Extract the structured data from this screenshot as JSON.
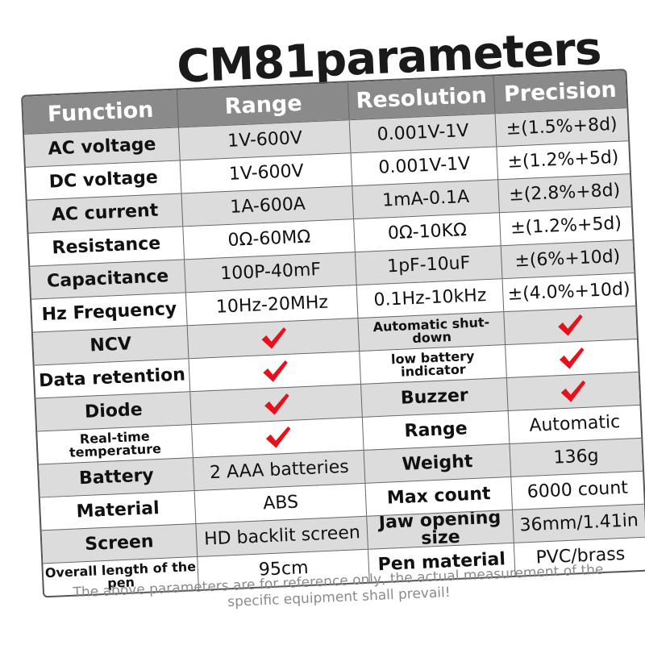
{
  "header": {
    "title": "CM81parameters"
  },
  "table": {
    "columns": [
      "Function",
      "Range",
      "Resolution",
      "Precision"
    ],
    "rows": [
      [
        "AC voltage",
        "1V-600V",
        "0.001V-1V",
        "±(1.5%+8d)"
      ],
      [
        "DC voltage",
        "1V-600V",
        "0.001V-1V",
        "±(1.2%+5d)"
      ],
      [
        "AC current",
        "1A-600A",
        "1mA-0.1A",
        "±(2.8%+8d)"
      ],
      [
        "Resistance",
        "0Ω-60MΩ",
        "0Ω-10KΩ",
        "±(1.2%+5d)"
      ],
      [
        "Capacitance",
        "100P-40mF",
        "1pF-10uF",
        "±(6%+10d)"
      ],
      [
        "Hz Frequency",
        "10Hz-20MHz",
        "0.1Hz-10kHz",
        "±(4.0%+10d)"
      ],
      [
        "NCV",
        true,
        "Automatic shut-down",
        true
      ],
      [
        "Data retention",
        true,
        "low battery indicator",
        true
      ],
      [
        "Diode",
        true,
        "Buzzer",
        true
      ],
      [
        "Real-time temperature",
        true,
        "Range",
        "Automatic"
      ],
      [
        "Battery",
        "2 AAA batteries",
        "Weight",
        "136g"
      ],
      [
        "Material",
        "ABS",
        "Max count",
        "6000 count"
      ],
      [
        "Screen",
        "HD backlit screen",
        "Jaw opening size",
        "36mm/1.41in"
      ],
      [
        "Overall length of the pen",
        "95cm",
        "Pen material",
        "PVC/brass"
      ]
    ]
  },
  "footer": {
    "note": "The above parameters are for reference only, the actual measurement of the specific equipment shall prevail!"
  }
}
